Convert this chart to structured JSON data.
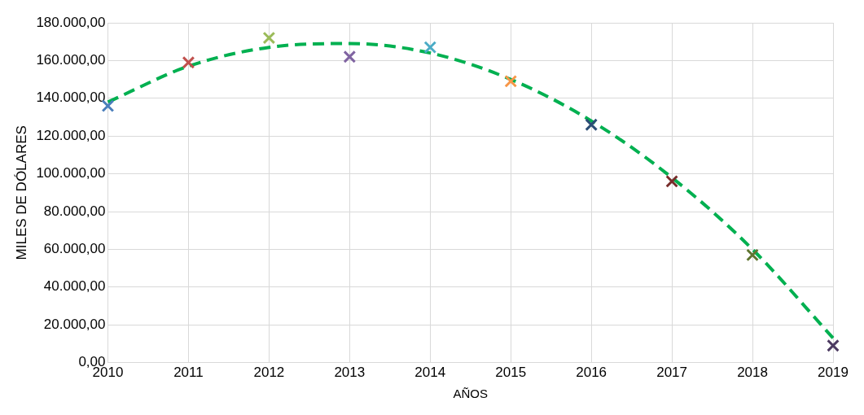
{
  "chart_data": {
    "type": "scatter",
    "xlabel": "AÑOS",
    "ylabel": "MILES DE DÓLARES",
    "x": [
      2010,
      2011,
      2012,
      2013,
      2014,
      2015,
      2016,
      2017,
      2018,
      2019
    ],
    "series": [
      {
        "marker": "cross",
        "colors": [
          "#4a7ebb",
          "#c0504d",
          "#9bbb59",
          "#8064a2",
          "#4bacc6",
          "#f79646",
          "#2c4d75",
          "#772c2a",
          "#5f7530",
          "#4d3b62"
        ],
        "values": [
          136000,
          159000,
          172000,
          162000,
          167000,
          149000,
          126000,
          96000,
          57000,
          9000
        ]
      },
      {
        "type": "line",
        "color": "#00b050",
        "line_style": "dashed",
        "marker": "none",
        "x": [
          2010,
          2011,
          2012,
          2013,
          2014,
          2015,
          2016,
          2017,
          2018,
          2019
        ],
        "values": [
          138000,
          157000,
          167000,
          169000,
          164000,
          150000,
          128000,
          98000,
          60000,
          13000
        ]
      }
    ],
    "xlim": [
      2010,
      2019
    ],
    "xticks": [
      2010,
      2011,
      2012,
      2013,
      2014,
      2015,
      2016,
      2017,
      2018,
      2019
    ],
    "ylim": [
      0,
      180000
    ],
    "yticks": [
      {
        "value": 0,
        "label": "0,00"
      },
      {
        "value": 20000,
        "label": "20.000,00"
      },
      {
        "value": 40000,
        "label": "40.000,00"
      },
      {
        "value": 60000,
        "label": "60.000,00"
      },
      {
        "value": 80000,
        "label": "80.000,00"
      },
      {
        "value": 100000,
        "label": "100.000,00"
      },
      {
        "value": 120000,
        "label": "120.000,00"
      },
      {
        "value": 140000,
        "label": "140.000,00"
      },
      {
        "value": 160000,
        "label": "160.000,00"
      },
      {
        "value": 180000,
        "label": "180.000,00"
      }
    ],
    "grid": true,
    "legend": false
  }
}
